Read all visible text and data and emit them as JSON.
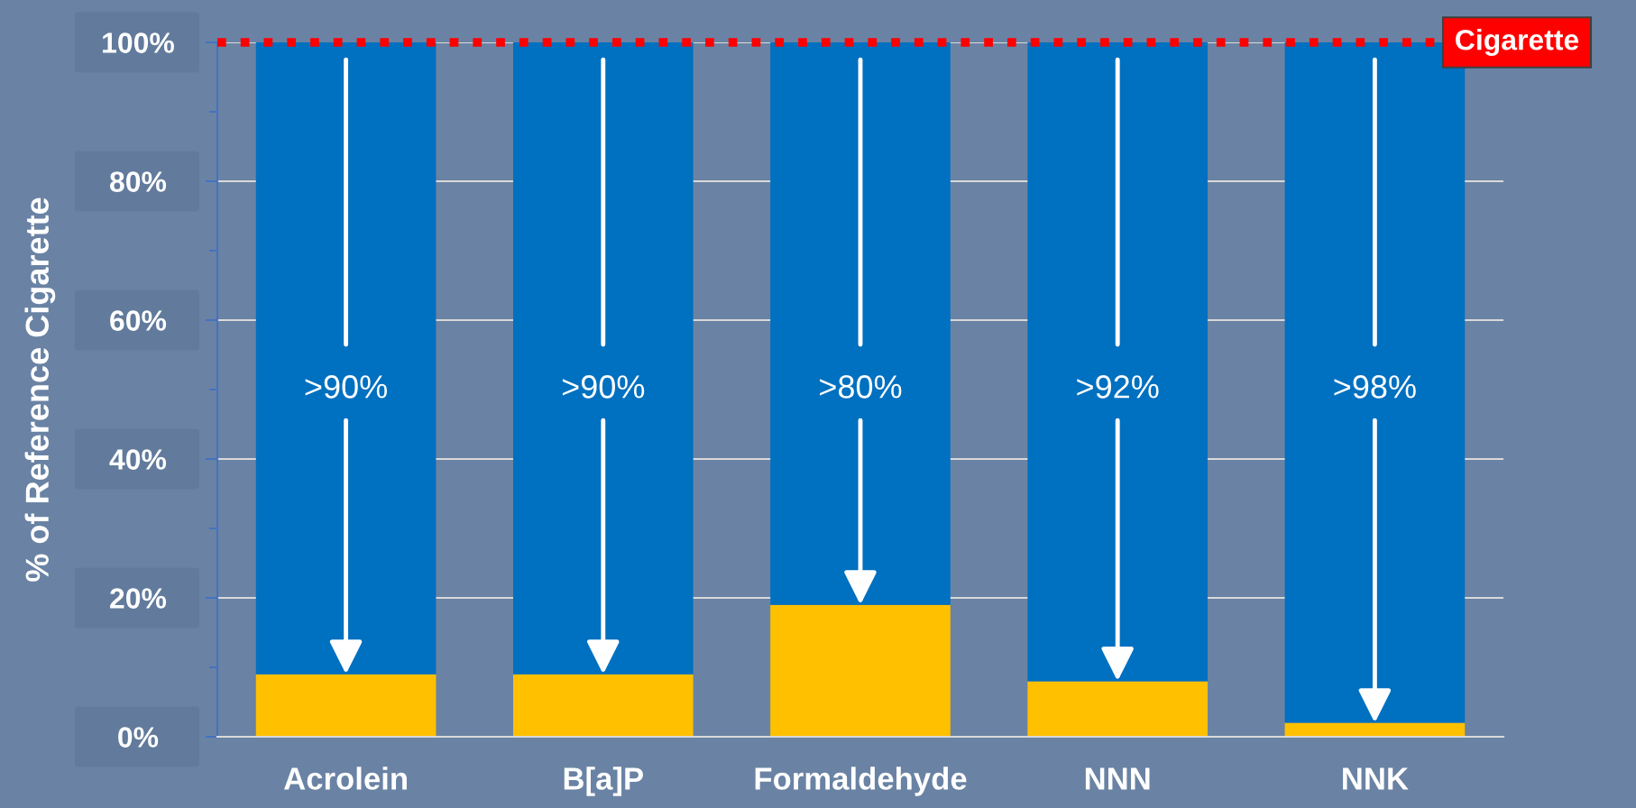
{
  "chart_data": {
    "type": "bar",
    "stacked": true,
    "ylabel": "% of Reference Cigarette",
    "categories": [
      "Acrolein",
      "B[a]P",
      "Formaldehyde",
      "NNN",
      "NNK"
    ],
    "series": [
      {
        "color": "#ffc000",
        "values": [
          9,
          9,
          19,
          8,
          2
        ]
      },
      {
        "color": "#0070c0",
        "values": [
          91,
          91,
          81,
          92,
          98
        ]
      }
    ],
    "ylim": [
      0,
      100
    ],
    "yticks": [
      {
        "value": 0,
        "label": "0%"
      },
      {
        "value": 10,
        "label": null
      },
      {
        "value": 20,
        "label": "20%"
      },
      {
        "value": 30,
        "label": null
      },
      {
        "value": 40,
        "label": "40%"
      },
      {
        "value": 50,
        "label": null
      },
      {
        "value": 60,
        "label": "60%"
      },
      {
        "value": 70,
        "label": null
      },
      {
        "value": 80,
        "label": "80%"
      },
      {
        "value": 90,
        "label": null
      },
      {
        "value": 100,
        "label": "100%"
      }
    ],
    "grid": "y",
    "ref_lines": [
      {
        "axis": "y",
        "value": 100,
        "label": "Cigarette",
        "color": "#ff0000",
        "line_style": "dotted"
      }
    ],
    "annotations": [
      {
        "text": ">90%",
        "x": "Acrolein",
        "y": 9
      },
      {
        "text": ">90%",
        "x": "B[a]P",
        "y": 9
      },
      {
        "text": ">80%",
        "x": "Formaldehyde",
        "y": 19
      },
      {
        "text": ">92%",
        "x": "NNN",
        "y": 8
      },
      {
        "text": ">98%",
        "x": "NNK",
        "y": 2
      }
    ]
  }
}
